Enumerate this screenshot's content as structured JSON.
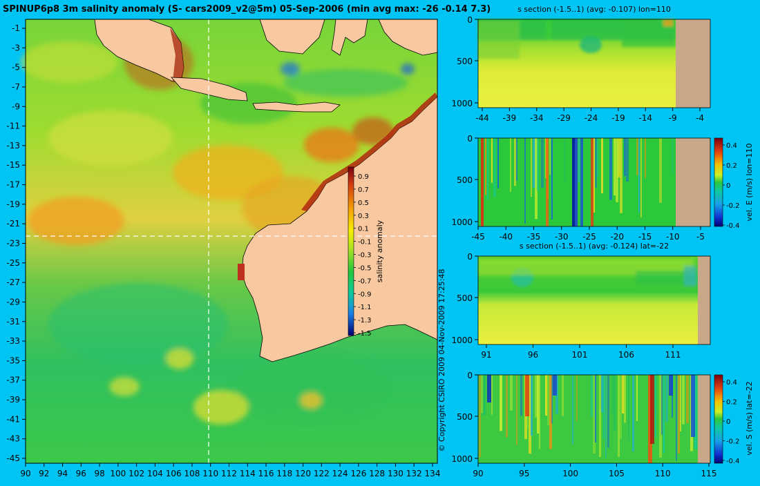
{
  "main_map": {
    "title": "SPINUP6p8 3m salinity anomaly (S- cars2009_v2@5m) 05-Sep-2006 (min avg max: -26 -0.14 7.3)",
    "lon_ticks": [
      "90",
      "92",
      "94",
      "96",
      "98",
      "100",
      "102",
      "104",
      "106",
      "108",
      "110",
      "112",
      "114",
      "116",
      "118",
      "120",
      "122",
      "124",
      "126",
      "128",
      "130",
      "132",
      "134"
    ],
    "lat_ticks": [
      "-1",
      "-3",
      "-5",
      "-7",
      "-9",
      "-11",
      "-13",
      "-15",
      "-17",
      "-19",
      "-21",
      "-23",
      "-25",
      "-27",
      "-29",
      "-31",
      "-33",
      "-35",
      "-37",
      "-39",
      "-41",
      "-43",
      "-45"
    ],
    "crosshair": {
      "lon": 110,
      "lat": -22
    },
    "colorbar": {
      "label": "salinity anomaly",
      "ticks": [
        "0.9",
        "0.7",
        "0.5",
        "0.3",
        "0.1",
        "-0.1",
        "-0.3",
        "-0.5",
        "-0.7",
        "-0.9",
        "-1.1",
        "-1.3",
        "-1.5"
      ]
    },
    "copyright": "© Copyright CSIRO 2009  04-Nov-2009 17:25:48"
  },
  "panels": [
    {
      "title": "s section (-1.5..1) (avg: -0.107) lon=110",
      "x_ticks": [
        "-44",
        "-39",
        "-34",
        "-29",
        "-24",
        "-19",
        "-14",
        "-9",
        "-4"
      ],
      "y_ticks": [
        "0",
        "500",
        "1000"
      ],
      "cbar_label": "",
      "cbar_ticks": []
    },
    {
      "title": "",
      "x_ticks": [
        "-45",
        "-40",
        "-35",
        "-30",
        "-25",
        "-20",
        "-15",
        "-10",
        "-5"
      ],
      "y_ticks": [
        "0",
        "500",
        "1000"
      ],
      "cbar_label": "vel. E (m/s) lon=110",
      "cbar_ticks": [
        "0.4",
        "0.2",
        "0",
        "-0.2",
        "-0.4"
      ]
    },
    {
      "title": "s section (-1.5..1) (avg: -0.124) lat=-22",
      "x_ticks": [
        "91",
        "96",
        "101",
        "106",
        "111"
      ],
      "y_ticks": [
        "0",
        "500",
        "1000"
      ],
      "cbar_label": "",
      "cbar_ticks": []
    },
    {
      "title": "",
      "x_ticks": [
        "90",
        "95",
        "100",
        "105",
        "110",
        "115"
      ],
      "y_ticks": [
        "0",
        "500",
        "1000"
      ],
      "cbar_label": "vel. S (m/s) lat=-22",
      "cbar_ticks": [
        "0.4",
        "0.2",
        "0",
        "-0.2",
        "-0.4"
      ]
    }
  ],
  "chart_data": [
    {
      "type": "heatmap",
      "title": "SPINUP6p8 3m salinity anomaly (S- cars2009_v2@5m) 05-Sep-2006 (min avg max: -26 -0.14 7.3)",
      "x_label": "",
      "y_label": "",
      "x_range": [
        90,
        135
      ],
      "y_range": [
        -45,
        0
      ],
      "stats": {
        "min": -26,
        "avg": -0.14,
        "max": 7.3
      },
      "color_range": [
        -1.5,
        1
      ],
      "colorbar_label": "salinity anomaly",
      "date": "05-Sep-2006"
    },
    {
      "type": "heatmap",
      "title": "s section (-1.5..1) (avg: -0.107) lon=110",
      "x_range": [
        -45,
        -2
      ],
      "y_range": [
        0,
        1000
      ],
      "color_range": [
        -1.5,
        1
      ],
      "avg": -0.107
    },
    {
      "type": "heatmap",
      "title": "",
      "x_range": [
        -45,
        -2
      ],
      "y_range": [
        0,
        1000
      ],
      "color_range": [
        -0.4,
        0.4
      ],
      "colorbar_label": "vel. E (m/s) lon=110"
    },
    {
      "type": "heatmap",
      "title": "s section (-1.5..1) (avg: -0.124) lat=-22",
      "x_range": [
        90,
        115
      ],
      "y_range": [
        0,
        1000
      ],
      "color_range": [
        -1.5,
        1
      ],
      "avg": -0.124
    },
    {
      "type": "heatmap",
      "title": "",
      "x_range": [
        90,
        115
      ],
      "y_range": [
        0,
        1000
      ],
      "color_range": [
        -0.4,
        0.4
      ],
      "colorbar_label": "vel. S (m/s) lat=-22"
    }
  ]
}
